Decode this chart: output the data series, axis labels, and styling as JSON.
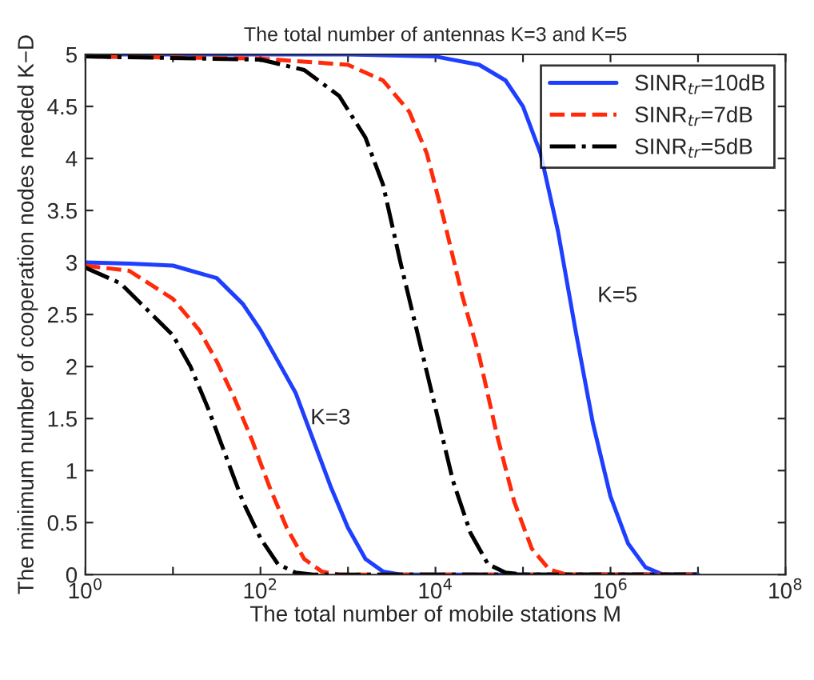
{
  "chart_data": {
    "type": "line",
    "title": "The total number of antennas K=3 and K=5",
    "xlabel": "The total number of mobile stations M",
    "ylabel": "The minimum number of cooperation nodes needed K−D",
    "log": "x",
    "grid": false,
    "legend": "top right",
    "marker": "none",
    "xlim": [
      1,
      100000000
    ],
    "xticks": [
      {
        "value": 1,
        "label": "10$^{0}$"
      },
      {
        "value": 10,
        "label": null
      },
      {
        "value": 100,
        "label": "10$^{2}$"
      },
      {
        "value": 1000,
        "label": null
      },
      {
        "value": 10000,
        "label": "10$^{4}$"
      },
      {
        "value": 100000,
        "label": null
      },
      {
        "value": 1000000,
        "label": "10$^{6}$"
      },
      {
        "value": 10000000,
        "label": null
      },
      {
        "value": 100000000,
        "label": "10$^{8}$"
      }
    ],
    "ylim": [
      0,
      5
    ],
    "yticks": [
      0,
      0.5,
      1,
      1.5,
      2,
      2.5,
      3,
      3.5,
      4,
      4.5,
      5
    ],
    "series": [
      {
        "name": "SINR$_{tr}$=10dB",
        "color": "#1f3fff",
        "line_style": "solid",
        "x": [
          1,
          3.162,
          10,
          31.62,
          63.1,
          100,
          158.5,
          251.2,
          398.1,
          631,
          1000,
          1585,
          2512,
          3981,
          10000000
        ],
        "values": [
          3,
          2.99,
          2.97,
          2.85,
          2.6,
          2.35,
          2.05,
          1.75,
          1.3,
          0.85,
          0.45,
          0.15,
          0.03,
          0,
          0
        ]
      },
      {
        "name": "SINR$_{tr}$=7dB",
        "color": "#ff2a0a",
        "line_style": "dashed",
        "x": [
          1,
          3.162,
          10,
          19.95,
          31.62,
          50.12,
          79.43,
          125.9,
          199.5,
          316.2,
          501.2,
          794.3,
          10000000
        ],
        "values": [
          2.97,
          2.92,
          2.65,
          2.35,
          2.05,
          1.7,
          1.3,
          0.85,
          0.45,
          0.15,
          0.03,
          0,
          0
        ]
      },
      {
        "name": "SINR$_{tr}$=5dB",
        "color": "#000000",
        "line_style": "dashdot",
        "x": [
          1,
          2.512,
          5.012,
          10,
          15.85,
          25.12,
          39.81,
          63.1,
          100,
          158.5,
          251.2,
          398.1,
          10000000
        ],
        "values": [
          2.95,
          2.8,
          2.55,
          2.3,
          2.0,
          1.6,
          1.15,
          0.7,
          0.35,
          0.1,
          0.02,
          0,
          0
        ]
      },
      {
        "color": "#1f3fff",
        "line_style": "solid",
        "x": [
          1,
          1000,
          10000,
          31620,
          63100,
          100000,
          158500,
          251200,
          398100,
          631000,
          1000000,
          1585000,
          2512000,
          3981000,
          10000000
        ],
        "values": [
          5,
          5,
          4.98,
          4.9,
          4.75,
          4.5,
          4.05,
          3.3,
          2.35,
          1.45,
          0.75,
          0.3,
          0.07,
          0,
          0
        ]
      },
      {
        "color": "#ff2a0a",
        "line_style": "dashed",
        "x": [
          1,
          100,
          1000,
          2512,
          5012,
          7943,
          12590,
          19950,
          31620,
          50120,
          79430,
          125900,
          199500,
          316200,
          10000000
        ],
        "values": [
          4.98,
          4.96,
          4.9,
          4.75,
          4.45,
          4.05,
          3.4,
          2.7,
          2.1,
          1.35,
          0.7,
          0.25,
          0.05,
          0,
          0
        ]
      },
      {
        "color": "#000000",
        "line_style": "dashdot",
        "x": [
          1,
          100,
          316.2,
          794.3,
          1585,
          2512,
          3981,
          6310,
          10000,
          15850,
          25120,
          39810,
          63100,
          100000,
          10000000
        ],
        "values": [
          4.98,
          4.95,
          4.85,
          4.6,
          4.2,
          3.75,
          3.0,
          2.3,
          1.6,
          0.9,
          0.4,
          0.1,
          0.02,
          0,
          0
        ]
      }
    ],
    "annotations": [
      "K=3",
      "K=5"
    ]
  }
}
